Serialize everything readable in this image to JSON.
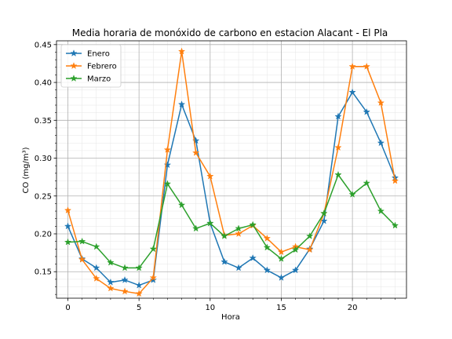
{
  "chart_data": {
    "type": "line",
    "title": "Media horaria de monóxido de carbono en estacion Alacant - El Pla",
    "xlabel": "Hora",
    "ylabel": "CO (mg/m³)",
    "xlim": [
      -0.8,
      23.8
    ],
    "ylim": [
      0.115,
      0.455
    ],
    "xticks": [
      0,
      5,
      10,
      15,
      20
    ],
    "xtick_labels": [
      "0",
      "5",
      "10",
      "15",
      "20"
    ],
    "yticks": [
      0.15,
      0.2,
      0.25,
      0.3,
      0.35,
      0.4,
      0.45
    ],
    "ytick_labels": [
      "0.15",
      "0.20",
      "0.25",
      "0.30",
      "0.35",
      "0.40",
      "0.45"
    ],
    "grid": true,
    "minor_grid": true,
    "legend_position": "upper-left",
    "marker": "star",
    "x": [
      0,
      1,
      2,
      3,
      4,
      5,
      6,
      7,
      8,
      9,
      10,
      11,
      12,
      13,
      14,
      15,
      16,
      17,
      18,
      19,
      20,
      21,
      22,
      23
    ],
    "series": [
      {
        "name": "Enero",
        "color": "#1f77b4",
        "values": [
          0.21,
          0.167,
          0.155,
          0.136,
          0.139,
          0.132,
          0.139,
          0.291,
          0.371,
          0.323,
          0.214,
          0.163,
          0.155,
          0.168,
          0.152,
          0.142,
          0.152,
          0.18,
          0.217,
          0.355,
          0.387,
          0.361,
          0.32,
          0.274
        ]
      },
      {
        "name": "Febrero",
        "color": "#ff7f0e",
        "values": [
          0.231,
          0.166,
          0.141,
          0.128,
          0.124,
          0.121,
          0.142,
          0.311,
          0.441,
          0.307,
          0.276,
          0.198,
          0.2,
          0.211,
          0.194,
          0.176,
          0.183,
          0.179,
          0.227,
          0.314,
          0.421,
          0.421,
          0.373,
          0.27
        ]
      },
      {
        "name": "Marzo",
        "color": "#2ca02c",
        "values": [
          0.189,
          0.19,
          0.183,
          0.162,
          0.155,
          0.155,
          0.18,
          0.266,
          0.238,
          0.207,
          0.214,
          0.197,
          0.207,
          0.212,
          0.182,
          0.167,
          0.179,
          0.197,
          0.227,
          0.278,
          0.252,
          0.267,
          0.23,
          0.211
        ]
      }
    ]
  }
}
